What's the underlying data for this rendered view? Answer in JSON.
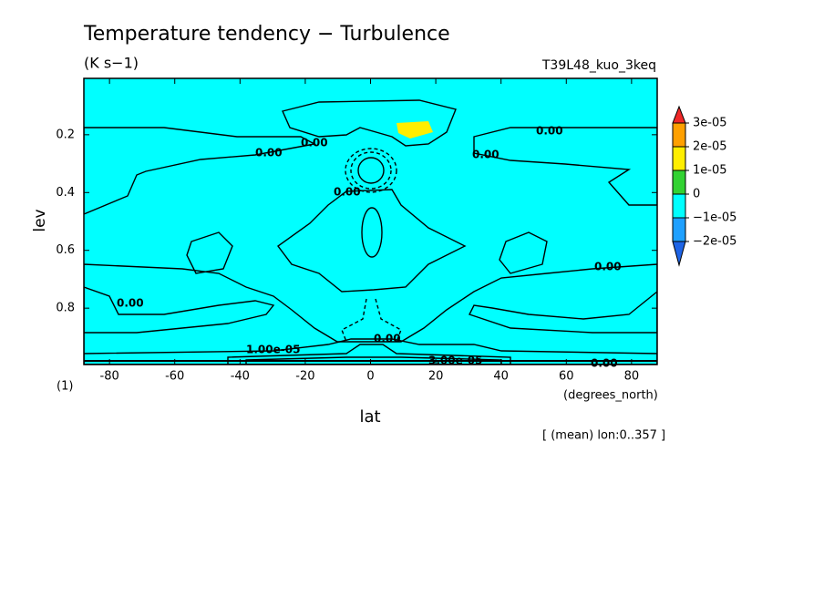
{
  "chart_data": {
    "type": "contour",
    "title": "Temperature tendency − Turbulence",
    "subtitle": "(K s−1)",
    "run_label": "T39L48_kuo_3keq",
    "xlabel": "lat",
    "ylabel": "lev",
    "x_units": "(degrees_north)",
    "y_units": "(1)",
    "footnote": "[ (mean) lon:0..357 ]",
    "xlim": [
      -87.86,
      87.86
    ],
    "ylim": [
      0.995,
      0.005
    ],
    "xticks": [
      -80,
      -60,
      -40,
      -20,
      0,
      20,
      40,
      60,
      80
    ],
    "yticks": [
      0.2,
      0.4,
      0.6,
      0.8
    ],
    "colorbar": {
      "levels": [
        {
          "value": 3e-05,
          "label": "3e-05"
        },
        {
          "value": 2e-05,
          "label": "2e-05"
        },
        {
          "value": 1e-05,
          "label": "1e-05"
        },
        0,
        {
          "value": -1e-05,
          "label": "−1e-05"
        },
        {
          "value": -2e-05,
          "label": "−2e-05"
        }
      ],
      "colors": [
        "#f02828",
        "#ffa000",
        "#ffee00",
        "#32d232",
        "#00ffff",
        "#1ea0ff",
        "#1e64e6"
      ]
    },
    "contour_labels": [
      "0.00",
      "0.00",
      "0.00",
      "0.00",
      "0.00",
      "0.00",
      "0.00",
      "0.00",
      "0.00",
      "1.00e-05",
      "3.00e-05"
    ]
  }
}
